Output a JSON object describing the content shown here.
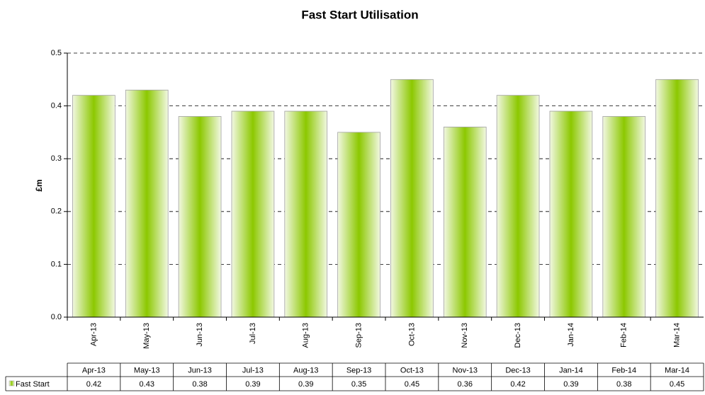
{
  "chart_data": {
    "type": "bar",
    "title": "Fast Start Utilisation",
    "y_label": "£m",
    "categories": [
      "Apr-13",
      "May-13",
      "Jun-13",
      "Jul-13",
      "Aug-13",
      "Sep-13",
      "Oct-13",
      "Nov-13",
      "Dec-13",
      "Jan-14",
      "Feb-14",
      "Mar-14"
    ],
    "series": [
      {
        "name": "Fast Start",
        "color": "#8cc800",
        "values": [
          0.42,
          0.43,
          0.38,
          0.39,
          0.39,
          0.35,
          0.45,
          0.36,
          0.42,
          0.39,
          0.38,
          0.45
        ]
      }
    ],
    "ylim": [
      0,
      0.5
    ],
    "yticks": [
      {
        "value": 0,
        "label": "0.0"
      },
      0.1,
      0.2,
      0.3,
      0.4,
      0.5
    ],
    "grid": true
  }
}
